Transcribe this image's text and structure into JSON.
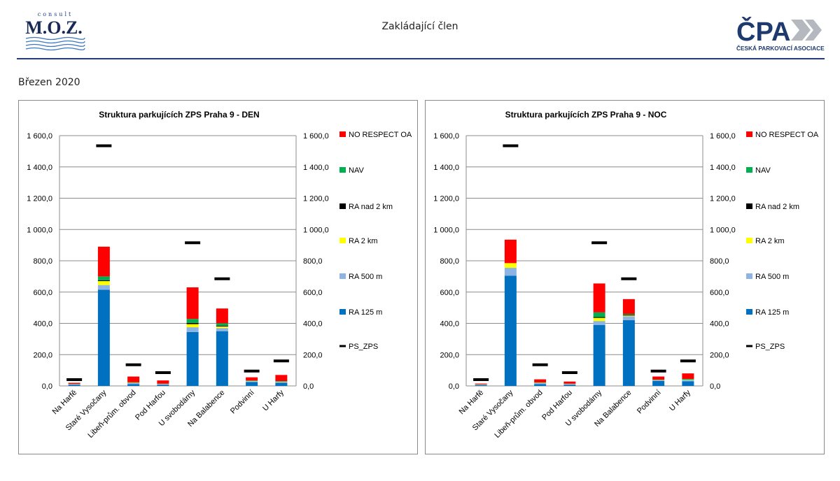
{
  "header": {
    "center_text": "Zakládající člen",
    "left_logo": {
      "top_text": "consult",
      "main_text": "M.O.Z."
    },
    "right_logo": {
      "main_text": "ČPA",
      "sub_text": "ČESKÁ PARKOVACÍ ASOCIACE"
    }
  },
  "page": {
    "date": "Březen 2020"
  },
  "colors": {
    "NO_RESPECT_OA": "#ff0000",
    "NAV": "#00b050",
    "RA_nad_2km": "#000000",
    "RA_2km": "#ffff00",
    "RA_500m": "#8eb4e3",
    "RA_125m": "#0070c0",
    "PS_ZPS": "#000000",
    "header_line": "#1f3a93"
  },
  "legend": [
    "NO RESPECT OA",
    "NAV",
    "RA nad 2 km",
    "RA 2 km",
    "RA 500 m",
    "RA 125 m",
    "PS_ZPS"
  ],
  "chart_data": [
    {
      "type": "bar",
      "title": "Struktura parkujících ZPS Praha 9 - DEN",
      "stacked": true,
      "categories": [
        "Na Harfě",
        "Staré Vysočany",
        "Libeň-prům. obvod",
        "Pod Harfou",
        "U svobodárny",
        "Na Balabence",
        "Podvinní",
        "U Harfy"
      ],
      "series": [
        {
          "name": "RA 125 m",
          "values": [
            8,
            615,
            12,
            8,
            345,
            350,
            25,
            20
          ]
        },
        {
          "name": "RA 500 m",
          "values": [
            3,
            30,
            6,
            4,
            30,
            20,
            5,
            5
          ]
        },
        {
          "name": "RA 2 km",
          "values": [
            1,
            25,
            2,
            1,
            20,
            10,
            2,
            2
          ]
        },
        {
          "name": "RA nad 2 km",
          "values": [
            0,
            5,
            1,
            0,
            8,
            5,
            1,
            1
          ]
        },
        {
          "name": "NAV",
          "values": [
            1,
            25,
            2,
            1,
            25,
            15,
            2,
            3
          ]
        },
        {
          "name": "NO RESPECT OA",
          "values": [
            7,
            190,
            37,
            21,
            202,
            95,
            20,
            39
          ]
        }
      ],
      "line_series": {
        "name": "PS_ZPS",
        "values": [
          40,
          1535,
          135,
          85,
          915,
          685,
          95,
          160
        ]
      },
      "ylim": [
        0,
        1600
      ],
      "yticks": [
        0,
        200,
        400,
        600,
        800,
        1000,
        1200,
        1400,
        1600
      ],
      "ytick_labels": [
        "0,0",
        "200,0",
        "400,0",
        "600,0",
        "800,0",
        "1 000,0",
        "1 200,0",
        "1 400,0",
        "1 600,0"
      ],
      "secondary_axis": true,
      "grid": true,
      "legend_position": "right"
    },
    {
      "type": "bar",
      "title": "Struktura parkujících ZPS Praha 9 - NOC",
      "stacked": true,
      "categories": [
        "Na Harfě",
        "Staré Vysočany",
        "Libeň-prům. obvod",
        "Pod Harfou",
        "U svobodárny",
        "Na Balabence",
        "Podvinní",
        "U Harfy"
      ],
      "series": [
        {
          "name": "RA 125 m",
          "values": [
            6,
            705,
            12,
            8,
            390,
            420,
            32,
            30
          ]
        },
        {
          "name": "RA 500 m",
          "values": [
            2,
            50,
            6,
            4,
            25,
            25,
            5,
            8
          ]
        },
        {
          "name": "RA 2 km",
          "values": [
            1,
            30,
            2,
            1,
            20,
            5,
            1,
            2
          ]
        },
        {
          "name": "RA nad 2 km",
          "values": [
            0,
            0,
            0,
            0,
            5,
            5,
            0,
            0
          ]
        },
        {
          "name": "NAV",
          "values": [
            1,
            0,
            2,
            1,
            30,
            5,
            2,
            5
          ]
        },
        {
          "name": "NO RESPECT OA",
          "values": [
            5,
            150,
            20,
            14,
            185,
            95,
            20,
            35
          ]
        }
      ],
      "line_series": {
        "name": "PS_ZPS",
        "values": [
          40,
          1535,
          135,
          85,
          915,
          685,
          95,
          160
        ]
      },
      "ylim": [
        0,
        1600
      ],
      "yticks": [
        0,
        200,
        400,
        600,
        800,
        1000,
        1200,
        1400,
        1600
      ],
      "ytick_labels": [
        "0,0",
        "200,0",
        "400,0",
        "600,0",
        "800,0",
        "1 000,0",
        "1 200,0",
        "1 400,0",
        "1 600,0"
      ],
      "secondary_axis": true,
      "grid": true,
      "legend_position": "right"
    }
  ]
}
